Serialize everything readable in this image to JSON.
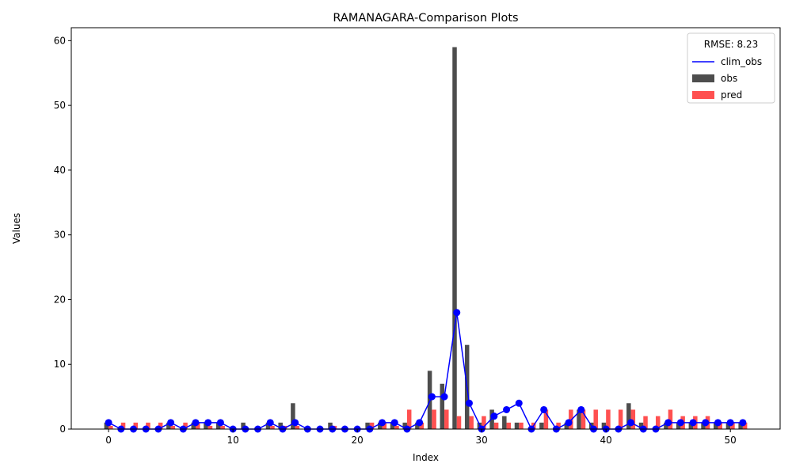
{
  "chart_data": {
    "type": "bar",
    "title": "RAMANAGARA-Comparison Plots",
    "xlabel": "Index",
    "ylabel": "Values",
    "xlim": [
      -3,
      54
    ],
    "ylim": [
      0,
      62
    ],
    "xticks": [
      0,
      10,
      20,
      30,
      40,
      50
    ],
    "yticks": [
      0,
      10,
      20,
      30,
      40,
      50,
      60
    ],
    "legend": {
      "title": "RMSE: 8.23",
      "placement": "upper right",
      "entries": [
        "clim_obs",
        "obs",
        "pred"
      ]
    },
    "x": [
      0,
      1,
      2,
      3,
      4,
      5,
      6,
      7,
      8,
      9,
      10,
      11,
      12,
      13,
      14,
      15,
      16,
      17,
      18,
      19,
      20,
      21,
      22,
      23,
      24,
      25,
      26,
      27,
      28,
      29,
      30,
      31,
      32,
      33,
      34,
      35,
      36,
      37,
      38,
      39,
      40,
      41,
      42,
      43,
      44,
      45,
      46,
      47,
      48,
      49,
      50,
      51
    ],
    "series": [
      {
        "name": "obs",
        "kind": "bar",
        "color": "#4d4d4d",
        "values": [
          1,
          0,
          0,
          0,
          0,
          1,
          0,
          1,
          1,
          1,
          0,
          1,
          0,
          1,
          1,
          4,
          0,
          0,
          1,
          0,
          0,
          1,
          1,
          1,
          1,
          1,
          9,
          7,
          59,
          13,
          1,
          3,
          2,
          1,
          0,
          1,
          0,
          1,
          3,
          1,
          1,
          0,
          4,
          1,
          0,
          1,
          1,
          1,
          1,
          1,
          1,
          1
        ]
      },
      {
        "name": "pred",
        "kind": "bar",
        "color": "#ff5050",
        "values": [
          0.5,
          1,
          1,
          1,
          1,
          0.5,
          1,
          1,
          0.5,
          0.5,
          0,
          0,
          0,
          0.5,
          0.5,
          0.5,
          0,
          0,
          0.5,
          0,
          0,
          1,
          1,
          0.5,
          3,
          1,
          3,
          3,
          2,
          2,
          2,
          1,
          1,
          1,
          1,
          3,
          1,
          3,
          3,
          3,
          3,
          3,
          3,
          2,
          2,
          3,
          2,
          2,
          2,
          1,
          1,
          1
        ]
      },
      {
        "name": "clim_obs",
        "kind": "line",
        "color": "#0000ff",
        "values": [
          1,
          0,
          0,
          0,
          0,
          1,
          0,
          1,
          1,
          1,
          0,
          0,
          0,
          1,
          0,
          1,
          0,
          0,
          0,
          0,
          0,
          0,
          1,
          1,
          0,
          1,
          5,
          5,
          18,
          4,
          0,
          2,
          3,
          4,
          0,
          3,
          0,
          1,
          3,
          0,
          0,
          0,
          1,
          0,
          0,
          1,
          1,
          1,
          1,
          1,
          1,
          1
        ]
      }
    ],
    "grid": false
  }
}
